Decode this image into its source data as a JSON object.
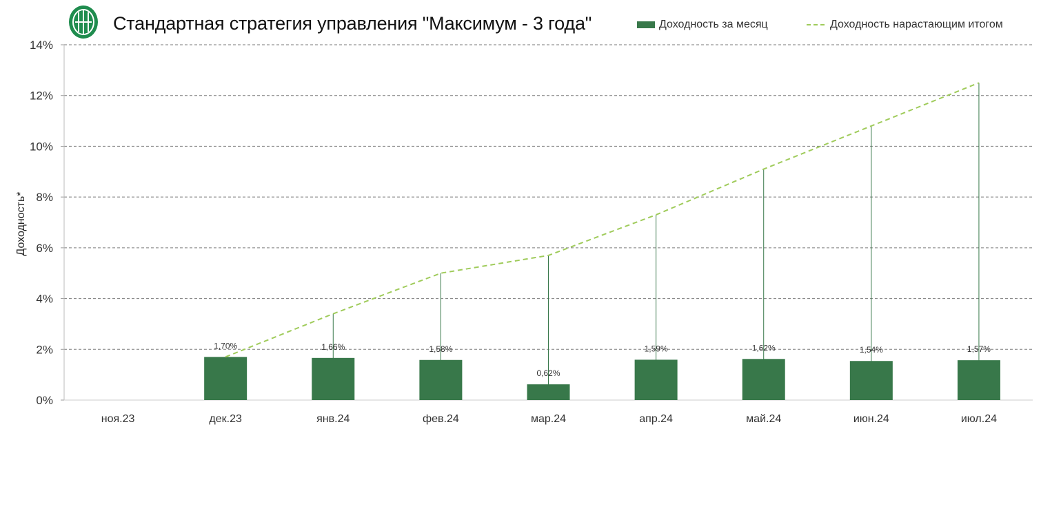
{
  "header": {
    "title": "Стандартная стратегия управления \"Максимум - 3 года\""
  },
  "colors": {
    "bar": "#38784a",
    "line": "#9fcb5a",
    "logo": "#1f8c4e",
    "grid": "#7a7a7a"
  },
  "chart_data": {
    "type": "bar",
    "title": "Стандартная стратегия управления \"Максимум - 3 года\"",
    "ylabel": "Доходность*",
    "xlabel": "",
    "ylim": [
      0,
      14
    ],
    "yticks": [
      0,
      2,
      4,
      6,
      8,
      10,
      12,
      14
    ],
    "ytick_labels": [
      "0%",
      "2%",
      "4%",
      "6%",
      "8%",
      "10%",
      "12%",
      "14%"
    ],
    "grid": true,
    "legend_position": "top-right",
    "categories": [
      "ноя.23",
      "дек.23",
      "янв.24",
      "фев.24",
      "мар.24",
      "апр.24",
      "май.24",
      "июн.24",
      "июл.24"
    ],
    "series": [
      {
        "name": "Доходность за месяц",
        "type": "bar",
        "values": [
          null,
          1.7,
          1.66,
          1.58,
          0.62,
          1.59,
          1.62,
          1.54,
          1.57
        ],
        "labels": [
          "",
          "1,70%",
          "1,66%",
          "1,58%",
          "0,62%",
          "1,59%",
          "1,62%",
          "1,54%",
          "1,57%"
        ]
      },
      {
        "name": "Доходность нарастающим итогом",
        "type": "line",
        "style": "dashed",
        "values": [
          null,
          1.7,
          3.4,
          5.0,
          5.7,
          7.3,
          9.1,
          10.8,
          12.5
        ]
      }
    ]
  }
}
